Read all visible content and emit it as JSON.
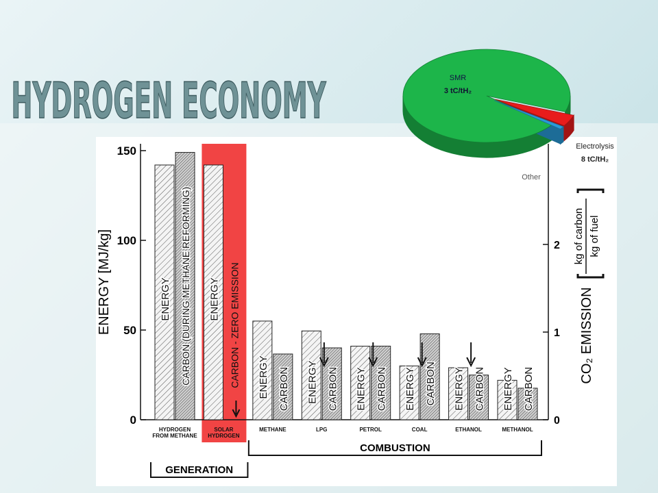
{
  "header": {
    "title": "HYDROGEN ECONOMY"
  },
  "chart_data": [
    {
      "type": "bar",
      "categories": [
        "HYDROGEN FROM METHANE",
        "SOLAR HYDROGEN",
        "METHANE",
        "LPG",
        "PETROL",
        "COAL",
        "ETHANOL",
        "METHANOL"
      ],
      "series": [
        {
          "name": "ENERGY",
          "color": "#e8e8e8",
          "values": [
            142,
            142,
            55,
            49.5,
            41,
            30,
            29,
            22
          ]
        },
        {
          "name": "CARBON",
          "color": "#b8b8b8",
          "axis": "y2",
          "values": [
            3.05,
            0,
            0.75,
            0.82,
            0.84,
            0.98,
            0.51,
            0.36
          ],
          "labels": [
            "CARBON (DURING METHANE REFORMING)",
            "CARBON - ZERO EMISSION",
            "CARBON",
            "CARBON",
            "CARBON",
            "CARBON",
            "CARBON",
            "CARBON"
          ]
        }
      ],
      "ylabel": "ENERGY [MJ/kg]",
      "y2label": "CO₂ EMISSION",
      "y2unit": {
        "numerator": "kg of carbon",
        "denominator": "kg of fuel"
      },
      "ylim": [
        0,
        150
      ],
      "yticks": [
        0,
        50,
        100,
        150
      ],
      "y2lim": [
        0,
        3.07
      ],
      "y2ticks": [
        0,
        1,
        2
      ],
      "highlight": {
        "category": 1,
        "color": "#f03a3a"
      },
      "groups": [
        {
          "label": "GENERATION",
          "from": 0,
          "to": 1
        },
        {
          "label": "COMBUSTION",
          "from": 2,
          "to": 7
        }
      ]
    },
    {
      "type": "pie",
      "labels": [
        "SMR",
        "Electrolysis",
        "Other"
      ],
      "notes": [
        "3 tC/tH₂",
        "8 tC/tH₂",
        null
      ],
      "values": [
        95,
        4,
        1
      ],
      "colors": [
        "#1db54a",
        "#e81c1c",
        "#2a9ad8"
      ],
      "explode": [
        false,
        true,
        true
      ]
    }
  ]
}
